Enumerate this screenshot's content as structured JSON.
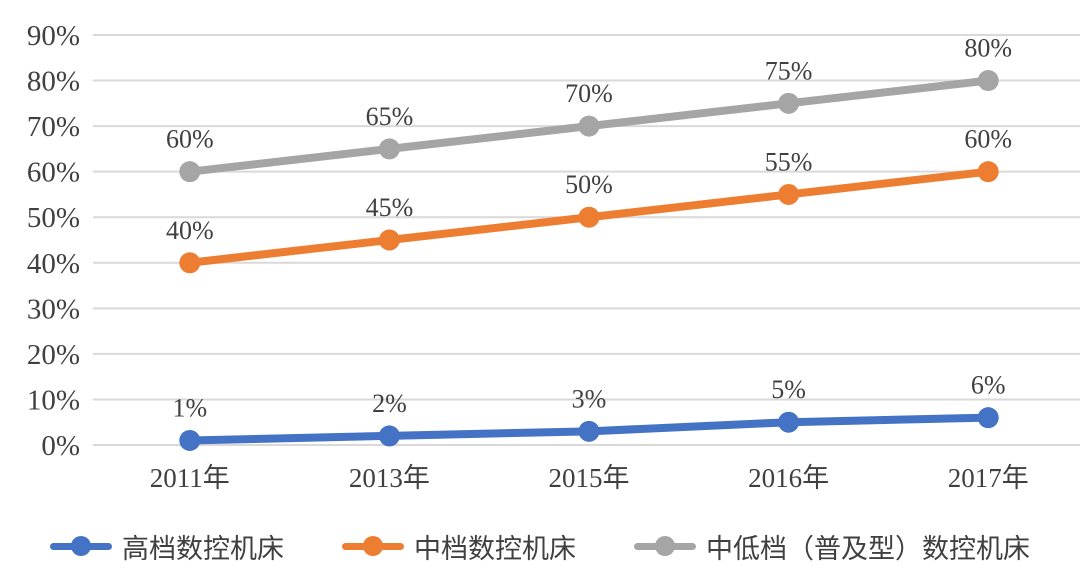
{
  "chart_data": {
    "type": "line",
    "title": "",
    "xlabel": "",
    "ylabel": "",
    "categories": [
      "2011年",
      "2013年",
      "2015年",
      "2016年",
      "2017年"
    ],
    "series": [
      {
        "name": "高档数控机床",
        "color": "#4472C4",
        "values": [
          1,
          2,
          3,
          5,
          6
        ]
      },
      {
        "name": "中档数控机床",
        "color": "#ED7D31",
        "values": [
          40,
          45,
          50,
          55,
          60
        ]
      },
      {
        "name": "中低档（普及型）数控机床",
        "color": "#A5A5A5",
        "values": [
          60,
          65,
          70,
          75,
          80
        ]
      }
    ],
    "data_labels": [
      [
        "1%",
        "2%",
        "3%",
        "5%",
        "6%"
      ],
      [
        "40%",
        "45%",
        "50%",
        "55%",
        "60%"
      ],
      [
        "60%",
        "65%",
        "70%",
        "75%",
        "80%"
      ]
    ],
    "y_axis": {
      "min": 0,
      "max": 90,
      "step": 10,
      "tick_labels": [
        "0%",
        "10%",
        "20%",
        "30%",
        "40%",
        "50%",
        "60%",
        "70%",
        "80%",
        "90%"
      ]
    },
    "grid": "horizontal",
    "legend_position": "bottom",
    "colors": {
      "gridline": "#D9D9D9",
      "axis_text": "#404040",
      "data_label_text": "#404040"
    }
  }
}
